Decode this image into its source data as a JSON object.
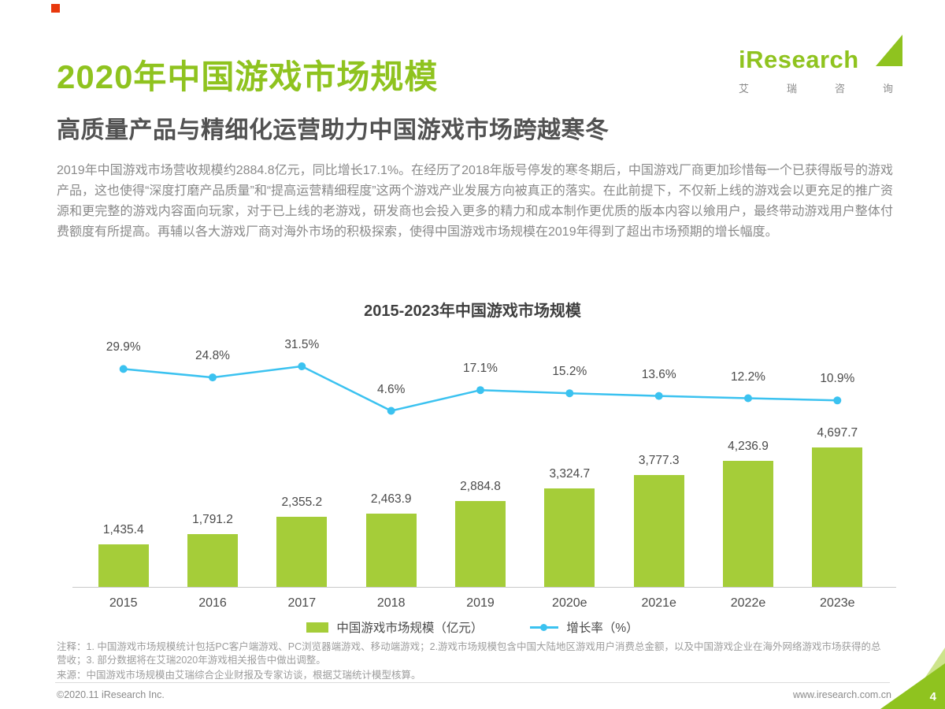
{
  "header": {
    "title": "2020年中国游戏市场规模",
    "subtitle": "高质量产品与精细化运营助力中国游戏市场跨越寒冬"
  },
  "logo": {
    "brand": "iResearch",
    "chinese": "艾 瑞 咨 询"
  },
  "intro": {
    "body": "2019年中国游戏市场营收规模约2884.8亿元，同比增长17.1%。在经历了2018年版号停发的寒冬期后，中国游戏厂商更加珍惜每一个已获得版号的游戏产品，这也使得“深度打磨产品质量”和“提高运营精细程度”这两个游戏产业发展方向被真正的落实。在此前提下，不仅新上线的游戏会以更充足的推广资源和更完整的游戏内容面向玩家，对于已上线的老游戏，研发商也会投入更多的精力和成本制作更优质的版本内容以飨用户，最终带动游戏用户整体付费额度有所提高。再辅以各大游戏厂商对海外市场的积极探索，使得中国游戏市场规模在2019年得到了超出市场预期的增长幅度。"
  },
  "chart_data": {
    "type": "bar",
    "title": "2015-2023年中国游戏市场规模",
    "categories": [
      "2015",
      "2016",
      "2017",
      "2018",
      "2019",
      "2020e",
      "2021e",
      "2022e",
      "2023e"
    ],
    "series": [
      {
        "name": "中国游戏市场规模（亿元）",
        "type": "bar",
        "color": "#a5cd39",
        "values": [
          1435.4,
          1791.2,
          2355.2,
          2463.9,
          2884.8,
          3324.7,
          3777.3,
          4236.9,
          4697.7
        ],
        "labels": [
          "1,435.4",
          "1,791.2",
          "2,355.2",
          "2,463.9",
          "2,884.8",
          "3,324.7",
          "3,777.3",
          "4,236.9",
          "4,697.7"
        ]
      },
      {
        "name": "增长率（%）",
        "type": "line",
        "color": "#3bc2f0",
        "values": [
          29.9,
          24.8,
          31.5,
          4.6,
          17.1,
          15.2,
          13.6,
          12.2,
          10.9
        ],
        "labels": [
          "29.9%",
          "24.8%",
          "31.5%",
          "4.6%",
          "17.1%",
          "15.2%",
          "13.6%",
          "12.2%",
          "10.9%"
        ]
      }
    ],
    "xlabel": "",
    "ylabel": "",
    "ylim_bar": [
      0,
      4700
    ],
    "ylim_line": [
      0,
      35
    ],
    "grid": false,
    "legend_position": "bottom"
  },
  "notes": {
    "note1": "注释：1. 中国游戏市场规模统计包括PC客户端游戏、PC浏览器端游戏、移动端游戏；2.游戏市场规模包含中国大陆地区游戏用户消费总金额，以及中国游戏企业在海外网络游戏市场获得的总营收；3. 部分数据将在艾瑞2020年游戏相关报告中做出调整。",
    "note2": "来源：中国游戏市场规模由艾瑞综合企业财报及专家访谈，根据艾瑞统计模型核算。"
  },
  "footer": {
    "left": "©2020.11 iResearch Inc.",
    "right": "www.iresearch.com.cn",
    "page_number": "4"
  },
  "colors": {
    "brand_green": "#8fc31f",
    "bar_green": "#a5cd39",
    "line_blue": "#3bc2f0",
    "red_accent": "#e8380d",
    "dark_text": "#4a4a4a",
    "gray_text": "#8a8a8a"
  }
}
